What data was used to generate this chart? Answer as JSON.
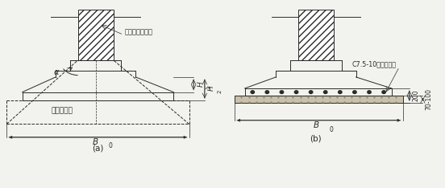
{
  "fig_width": 5.52,
  "fig_height": 2.34,
  "dpi": 100,
  "bg_color": "#f2f2ee",
  "line_color": "#2a2a2a",
  "label_a": "(a)",
  "label_b": "(b)",
  "text_gangjin": "钢筋混凝土基础",
  "text_hunningtu": "混凝土基础",
  "text_c75": "C7.5-10混凝土垫层",
  "text_alpha": "α",
  "text_H1": "H",
  "text_H1_sub": "1",
  "text_H2": "H",
  "text_H2_sub": "2",
  "text_B0_a": "B",
  "text_B0_a_sub": "0",
  "text_B0_b": "B",
  "text_B0_b_sub": "0",
  "text_70_100": "70-100",
  "text_200": "200"
}
